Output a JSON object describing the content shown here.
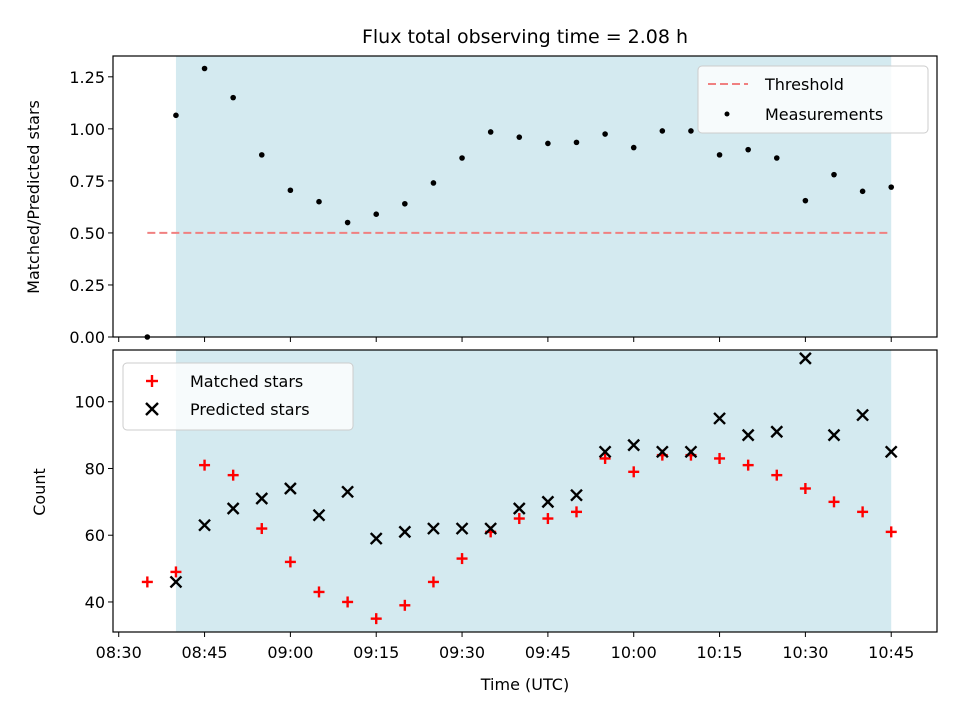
{
  "chart_data": [
    {
      "type": "scatter",
      "title": "Flux total observing time = 2.08 h",
      "xlabel": "",
      "ylabel": "Matched/Predicted stars",
      "ylim": [
        0,
        1.35
      ],
      "yticks": [
        "0.00",
        "0.25",
        "0.50",
        "0.75",
        "1.00",
        "1.25"
      ],
      "shaded_region": {
        "x_start": "08:40",
        "x_end": "10:45",
        "color": "#d4eaf0"
      },
      "legend": {
        "placement": "top-right"
      },
      "series": [
        {
          "name": "Threshold",
          "kind": "dashed-line",
          "color": "#f08080",
          "x": [
            "08:35",
            "10:45"
          ],
          "values": [
            0.5,
            0.5
          ]
        },
        {
          "name": "Measurements",
          "kind": "dots",
          "color": "#000000",
          "x": [
            "08:35",
            "08:40",
            "08:45",
            "08:50",
            "08:55",
            "09:00",
            "09:05",
            "09:10",
            "09:15",
            "09:20",
            "09:25",
            "09:30",
            "09:35",
            "09:40",
            "09:45",
            "09:50",
            "09:55",
            "10:00",
            "10:05",
            "10:10",
            "10:15",
            "10:20",
            "10:25",
            "10:30",
            "10:35",
            "10:40",
            "10:45"
          ],
          "values": [
            0.0,
            1.065,
            1.29,
            1.15,
            0.875,
            0.705,
            0.65,
            0.55,
            0.59,
            0.64,
            0.74,
            0.86,
            0.985,
            0.96,
            0.93,
            0.935,
            0.975,
            0.91,
            0.99,
            0.99,
            0.875,
            0.9,
            0.86,
            0.655,
            0.78,
            0.7,
            0.72
          ]
        }
      ]
    },
    {
      "type": "scatter",
      "title": "",
      "xlabel": "Time (UTC)",
      "ylabel": "Count",
      "ylim": [
        31,
        115.5
      ],
      "yticks": [
        "40",
        "60",
        "80",
        "100"
      ],
      "xticks": [
        "08:30",
        "08:45",
        "09:00",
        "09:15",
        "09:30",
        "09:45",
        "10:00",
        "10:15",
        "10:30",
        "10:45"
      ],
      "xlim": [
        "08:29",
        "10:53"
      ],
      "shaded_region": {
        "x_start": "08:40",
        "x_end": "10:45",
        "color": "#d4eaf0"
      },
      "legend": {
        "placement": "top-left"
      },
      "series": [
        {
          "name": "Matched stars",
          "marker": "plus",
          "color": "#ff0000",
          "x": [
            "08:35",
            "08:40",
            "08:45",
            "08:50",
            "08:55",
            "09:00",
            "09:05",
            "09:10",
            "09:15",
            "09:20",
            "09:25",
            "09:30",
            "09:35",
            "09:40",
            "09:45",
            "09:50",
            "09:55",
            "10:00",
            "10:05",
            "10:10",
            "10:15",
            "10:20",
            "10:25",
            "10:30",
            "10:35",
            "10:40",
            "10:45"
          ],
          "values": [
            46,
            49,
            81,
            78,
            62,
            52,
            43,
            40,
            35,
            39,
            46,
            53,
            61,
            65,
            65,
            67,
            83,
            79,
            84,
            84,
            83,
            81,
            78,
            74,
            70,
            67,
            61
          ]
        },
        {
          "name": "Predicted stars",
          "marker": "x",
          "color": "#000000",
          "x": [
            "08:40",
            "08:45",
            "08:50",
            "08:55",
            "09:00",
            "09:05",
            "09:10",
            "09:15",
            "09:20",
            "09:25",
            "09:30",
            "09:35",
            "09:40",
            "09:45",
            "09:50",
            "09:55",
            "10:00",
            "10:05",
            "10:10",
            "10:15",
            "10:20",
            "10:25",
            "10:30",
            "10:35",
            "10:40",
            "10:45"
          ],
          "values": [
            46,
            63,
            68,
            71,
            74,
            66,
            73,
            59,
            61,
            62,
            62,
            62,
            68,
            70,
            72,
            85,
            87,
            85,
            85,
            95,
            90,
            91,
            113,
            90,
            96,
            85
          ]
        }
      ]
    }
  ]
}
